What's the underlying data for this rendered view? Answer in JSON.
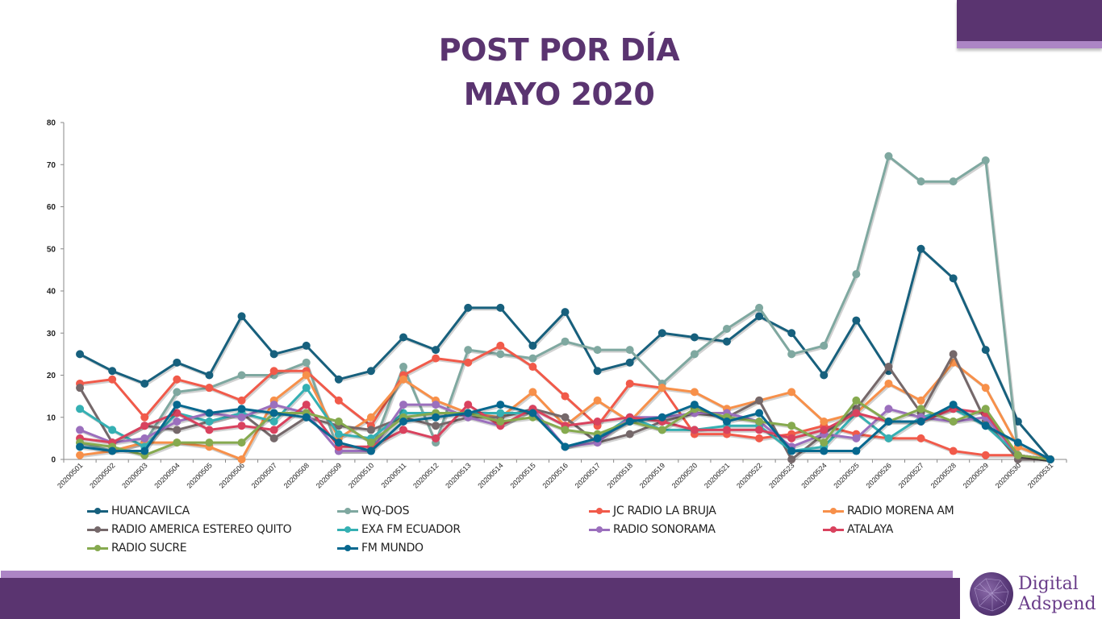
{
  "slide": {
    "title_line1": "POST POR DÍA",
    "title_line2": "MAYO 2020",
    "brand": {
      "line1": "Digital",
      "line2": "Adspend"
    },
    "colors": {
      "primary_purple": "#5a3470",
      "accent_lavender": "#ac85c5"
    }
  },
  "chart_data": {
    "type": "line",
    "title": "POST POR DÍA MAYO 2020",
    "xlabel": "",
    "ylabel": "",
    "ylim": [
      0,
      80
    ],
    "yticks": [
      0,
      10,
      20,
      30,
      40,
      50,
      60,
      70,
      80
    ],
    "grid": false,
    "legend_position": "bottom",
    "x": [
      "20200501",
      "20200502",
      "20200503",
      "20200504",
      "20200505",
      "20200506",
      "20200507",
      "20200508",
      "20200509",
      "20200510",
      "20200511",
      "20200512",
      "20200513",
      "20200514",
      "20200515",
      "20200516",
      "20200517",
      "20200518",
      "20200519",
      "20200520",
      "20200521",
      "20200522",
      "20200523",
      "20200524",
      "20200525",
      "20200526",
      "20200527",
      "20200528",
      "20200529",
      "20200530",
      "20200531"
    ],
    "series": [
      {
        "name": "HUANCAVILCA",
        "color": "#17607d",
        "values": [
          25,
          21,
          18,
          23,
          20,
          34,
          25,
          27,
          19,
          21,
          29,
          26,
          36,
          36,
          27,
          35,
          21,
          23,
          30,
          29,
          28,
          34,
          30,
          20,
          33,
          21,
          50,
          43,
          26,
          9,
          0
        ]
      },
      {
        "name": "WQ-DOS",
        "color": "#7fa8a0",
        "values": [
          4,
          2,
          4,
          16,
          17,
          20,
          20,
          23,
          2,
          2,
          22,
          4,
          26,
          25,
          24,
          28,
          26,
          26,
          18,
          25,
          31,
          36,
          25,
          27,
          44,
          72,
          66,
          66,
          71,
          1,
          0
        ]
      },
      {
        "name": "JC RADIO LA BRUJA",
        "color": "#f15a4a",
        "values": [
          18,
          19,
          10,
          19,
          17,
          14,
          21,
          21,
          14,
          8,
          20,
          24,
          23,
          27,
          22,
          15,
          8,
          18,
          17,
          6,
          6,
          5,
          6,
          8,
          6,
          5,
          5,
          2,
          1,
          1,
          0
        ]
      },
      {
        "name": "RADIO MORENA AM",
        "color": "#f7904a",
        "values": [
          1,
          2,
          4,
          4,
          3,
          0,
          14,
          20,
          5,
          10,
          19,
          14,
          11,
          10,
          16,
          8,
          14,
          9,
          17,
          16,
          12,
          14,
          16,
          9,
          11,
          18,
          14,
          23,
          17,
          3,
          0
        ]
      },
      {
        "name": "RADIO AMERICA ESTEREO QUITO",
        "color": "#75686a",
        "values": [
          17,
          4,
          8,
          7,
          9,
          11,
          5,
          10,
          8,
          7,
          10,
          8,
          10,
          10,
          12,
          10,
          4,
          6,
          9,
          11,
          10,
          14,
          0,
          6,
          12,
          22,
          11,
          25,
          9,
          0,
          0
        ]
      },
      {
        "name": "EXA FM ECUADOR",
        "color": "#35b0b3",
        "values": [
          12,
          7,
          3,
          11,
          9,
          11,
          9,
          17,
          6,
          5,
          11,
          11,
          11,
          11,
          11,
          3,
          5,
          10,
          7,
          7,
          8,
          8,
          2,
          3,
          11,
          5,
          10,
          12,
          8,
          1,
          0
        ]
      },
      {
        "name": "RADIO SONORAMA",
        "color": "#9b6fbd",
        "values": [
          7,
          4,
          5,
          9,
          11,
          10,
          13,
          11,
          2,
          2,
          13,
          13,
          10,
          8,
          12,
          3,
          4,
          10,
          10,
          11,
          11,
          9,
          3,
          6,
          5,
          12,
          10,
          9,
          10,
          1,
          0
        ]
      },
      {
        "name": "ATALAYA",
        "color": "#d9425e",
        "values": [
          5,
          4,
          8,
          11,
          7,
          8,
          7,
          13,
          3,
          3,
          7,
          5,
          13,
          8,
          12,
          8,
          9,
          10,
          9,
          7,
          7,
          7,
          5,
          7,
          11,
          9,
          9,
          12,
          11,
          1,
          0
        ]
      },
      {
        "name": "RADIO SUCRE",
        "color": "#86aa4f",
        "values": [
          4,
          3,
          1,
          4,
          4,
          4,
          11,
          11,
          9,
          4,
          10,
          11,
          11,
          9,
          10,
          7,
          6,
          9,
          7,
          12,
          10,
          9,
          8,
          4,
          14,
          9,
          12,
          9,
          12,
          1,
          0
        ]
      },
      {
        "name": "FM MUNDO",
        "color": "#06688f",
        "values": [
          3,
          2,
          2,
          13,
          11,
          12,
          11,
          10,
          4,
          2,
          9,
          10,
          11,
          13,
          11,
          3,
          5,
          9,
          10,
          13,
          9,
          11,
          2,
          2,
          2,
          9,
          9,
          13,
          8,
          4,
          0
        ]
      }
    ]
  }
}
